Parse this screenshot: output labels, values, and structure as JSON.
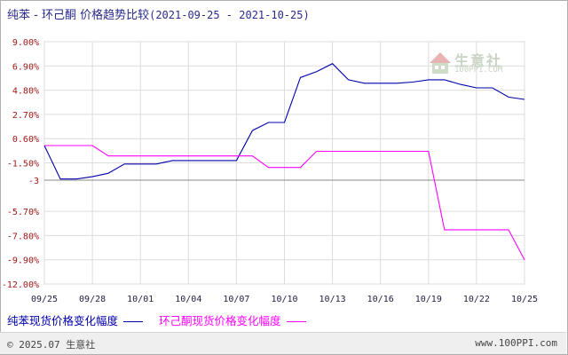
{
  "header": {
    "title": "纯苯 - 环己酮 价格趋势比较",
    "date_range": "(2021-09-25 - 2021-10-25)"
  },
  "watermark": {
    "name": "生意社",
    "url": "100PPI.COM"
  },
  "footer": {
    "copyright": "© 2025.07 生意社",
    "site": "www.100PPI.com"
  },
  "chart_data": {
    "type": "line",
    "title": "纯苯 - 环己酮 价格趋势比较",
    "xlabel": "",
    "ylabel": "",
    "ylim": [
      -12,
      9
    ],
    "grid": {
      "horizontal": true,
      "vertical": true
    },
    "legend_position": "bottom-left",
    "y_ticks": [
      "9.00%",
      "6.90%",
      "4.80%",
      "2.70%",
      "0.60%",
      "-1.50%",
      "-3",
      "-5.70%",
      "-7.80%",
      "-9.90%",
      "-12.00%"
    ],
    "y_tick_values": [
      9.0,
      6.9,
      4.8,
      2.7,
      0.6,
      -1.5,
      -3.0,
      -5.7,
      -7.8,
      -9.9,
      -12.0
    ],
    "x_ticks": [
      "09/25",
      "09/28",
      "10/01",
      "10/04",
      "10/07",
      "10/10",
      "10/13",
      "10/16",
      "10/19",
      "10/22",
      "10/25"
    ],
    "x": [
      "09/25",
      "09/26",
      "09/27",
      "09/28",
      "09/29",
      "09/30",
      "10/01",
      "10/02",
      "10/03",
      "10/04",
      "10/05",
      "10/06",
      "10/07",
      "10/08",
      "10/09",
      "10/10",
      "10/11",
      "10/12",
      "10/13",
      "10/14",
      "10/15",
      "10/16",
      "10/17",
      "10/18",
      "10/19",
      "10/20",
      "10/21",
      "10/22",
      "10/23",
      "10/24",
      "10/25"
    ],
    "series": [
      {
        "name": "纯苯现货价格变化幅度",
        "color": "#0000aa",
        "values": [
          0,
          -2.9,
          -2.9,
          -2.7,
          -2.4,
          -1.6,
          -1.6,
          -1.6,
          -1.3,
          -1.3,
          -1.3,
          -1.3,
          -1.3,
          1.3,
          2.0,
          2.0,
          5.9,
          6.4,
          7.1,
          5.7,
          5.4,
          5.4,
          5.4,
          5.5,
          5.7,
          5.7,
          5.3,
          5.0,
          5.0,
          4.2,
          4.0
        ]
      },
      {
        "name": "环己酮现货价格变化幅度",
        "color": "#ff00ff",
        "values": [
          0,
          0,
          0,
          0,
          -0.9,
          -0.9,
          -0.9,
          -0.9,
          -0.9,
          -0.9,
          -0.9,
          -0.9,
          -0.9,
          -0.9,
          -1.9,
          -1.9,
          -1.9,
          -0.5,
          -0.5,
          -0.5,
          -0.5,
          -0.5,
          -0.5,
          -0.5,
          -0.5,
          -7.3,
          -7.3,
          -7.3,
          -7.3,
          -7.3,
          -9.9
        ]
      }
    ],
    "reference_line": {
      "value": -3.0,
      "color": "#888888"
    }
  }
}
